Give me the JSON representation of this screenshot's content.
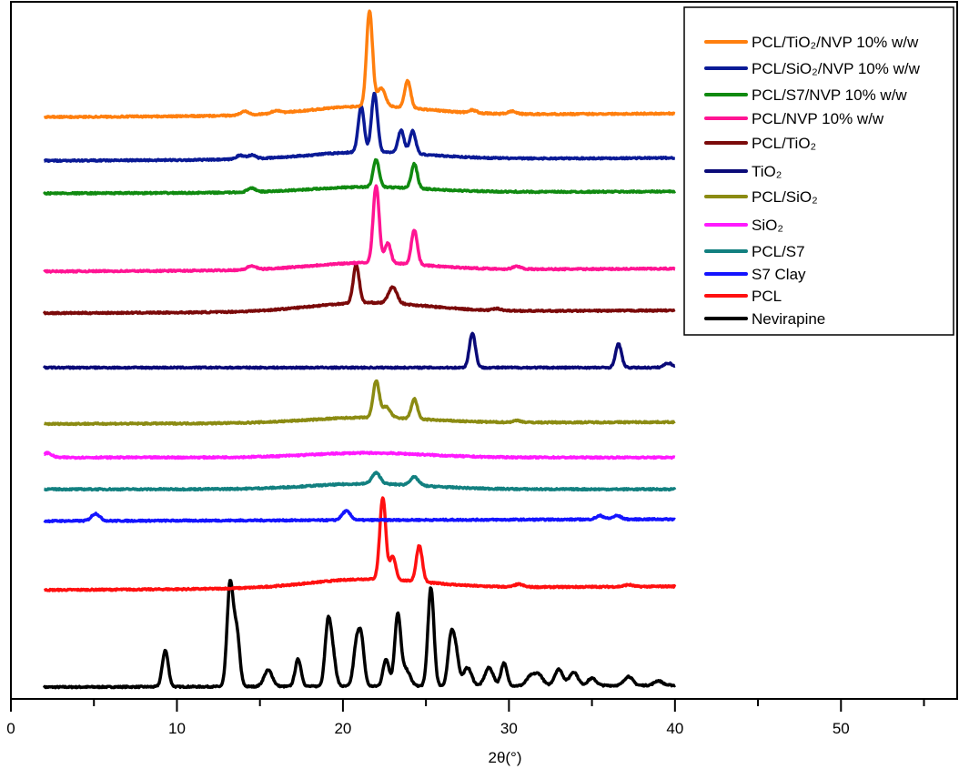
{
  "chart_data": {
    "type": "line",
    "title": "",
    "xlabel": "2θ(°)",
    "ylabel": "",
    "xlim": [
      0,
      57
    ],
    "ylim": [
      0,
      768
    ],
    "xticks": [
      0,
      10,
      20,
      30,
      40,
      50
    ],
    "xminor_ticks": [
      5,
      15,
      25,
      35,
      45,
      55
    ],
    "x_range_measured": [
      2,
      40
    ],
    "grid": false,
    "legend_placement": "top-right",
    "series": [
      {
        "name": "PCL/TiO₂/NVP 10% w/w",
        "color": "#ff7f0e",
        "offset": 641,
        "drift": 4,
        "halo": 10,
        "peaks": [
          [
            14.1,
            4
          ],
          [
            16.0,
            3
          ],
          [
            21.6,
            105
          ],
          [
            22.3,
            20
          ],
          [
            23.9,
            30
          ],
          [
            27.8,
            3
          ],
          [
            30.2,
            3
          ]
        ]
      },
      {
        "name": "PCL/SiO₂/NVP 10% w/w",
        "color": "#0a1a96",
        "offset": 593,
        "drift": 3,
        "halo": 8,
        "peaks": [
          [
            13.8,
            4
          ],
          [
            14.5,
            4
          ],
          [
            21.1,
            50
          ],
          [
            21.9,
            65
          ],
          [
            23.5,
            25
          ],
          [
            24.2,
            25
          ]
        ]
      },
      {
        "name": "PCL/S7/NVP 10% w/w",
        "color": "#108a10",
        "offset": 557,
        "drift": 2,
        "halo": 6,
        "peaks": [
          [
            14.5,
            4
          ],
          [
            22.0,
            30
          ],
          [
            24.3,
            27
          ]
        ]
      },
      {
        "name": "PCL/NVP 10% w/w",
        "color": "#ff1493",
        "offset": 471,
        "drift": 3,
        "halo": 8,
        "peaks": [
          [
            14.5,
            4
          ],
          [
            22.0,
            85
          ],
          [
            22.7,
            22
          ],
          [
            24.3,
            38
          ],
          [
            30.5,
            3
          ]
        ]
      },
      {
        "name": "PCL/TiO₂",
        "color": "#7b0a0a",
        "offset": 425,
        "drift": 3,
        "halo": 10,
        "peaks": [
          [
            20.8,
            42
          ],
          [
            23.0,
            18
          ],
          [
            29.3,
            2
          ]
        ]
      },
      {
        "name": "TiO₂",
        "color": "#0a0a78",
        "offset": 365,
        "drift": 0,
        "halo": 0,
        "peaks": [
          [
            27.8,
            38
          ],
          [
            36.6,
            26
          ],
          [
            39.6,
            5
          ]
        ]
      },
      {
        "name": "PCL/SiO₂",
        "color": "#8b8b12",
        "offset": 303,
        "drift": 2,
        "halo": 6,
        "peaks": [
          [
            22.0,
            40
          ],
          [
            22.6,
            12
          ],
          [
            24.3,
            22
          ],
          [
            30.5,
            2
          ]
        ]
      },
      {
        "name": "SiO₂",
        "color": "#ff1aff",
        "offset": 266,
        "drift": 0,
        "halo": 5,
        "peaks": [
          [
            2.2,
            5
          ]
        ]
      },
      {
        "name": "PCL/S7",
        "color": "#128080",
        "offset": 231,
        "drift": 0,
        "halo": 6,
        "peaks": [
          [
            22.0,
            12
          ],
          [
            24.3,
            9
          ]
        ]
      },
      {
        "name": "S7 Clay",
        "color": "#1414ff",
        "offset": 196,
        "drift": 2,
        "halo": 0,
        "peaks": [
          [
            5.1,
            8
          ],
          [
            20.2,
            10
          ],
          [
            35.5,
            4
          ],
          [
            36.5,
            4
          ]
        ]
      },
      {
        "name": "PCL",
        "color": "#ff1010",
        "offset": 120,
        "drift": 4,
        "halo": 10,
        "peaks": [
          [
            22.4,
            90
          ],
          [
            23.0,
            25
          ],
          [
            24.6,
            40
          ],
          [
            30.6,
            3
          ],
          [
            37.2,
            2
          ]
        ]
      },
      {
        "name": "Nevirapine",
        "color": "#000000",
        "offset": 13,
        "drift": 2,
        "halo": 0,
        "peaks": [
          [
            9.3,
            40
          ],
          [
            13.2,
            112
          ],
          [
            13.6,
            60
          ],
          [
            15.5,
            18
          ],
          [
            17.3,
            30
          ],
          [
            19.1,
            68
          ],
          [
            19.4,
            30
          ],
          [
            20.8,
            40
          ],
          [
            21.1,
            50
          ],
          [
            22.6,
            30
          ],
          [
            23.3,
            78
          ],
          [
            23.8,
            18
          ],
          [
            25.3,
            108
          ],
          [
            26.5,
            50
          ],
          [
            26.8,
            35
          ],
          [
            27.5,
            20
          ],
          [
            28.8,
            20
          ],
          [
            29.7,
            25
          ],
          [
            31.3,
            10
          ],
          [
            31.8,
            12
          ],
          [
            33.0,
            18
          ],
          [
            33.9,
            15
          ],
          [
            35.0,
            8
          ],
          [
            37.2,
            10
          ],
          [
            39.0,
            5
          ]
        ]
      }
    ]
  }
}
